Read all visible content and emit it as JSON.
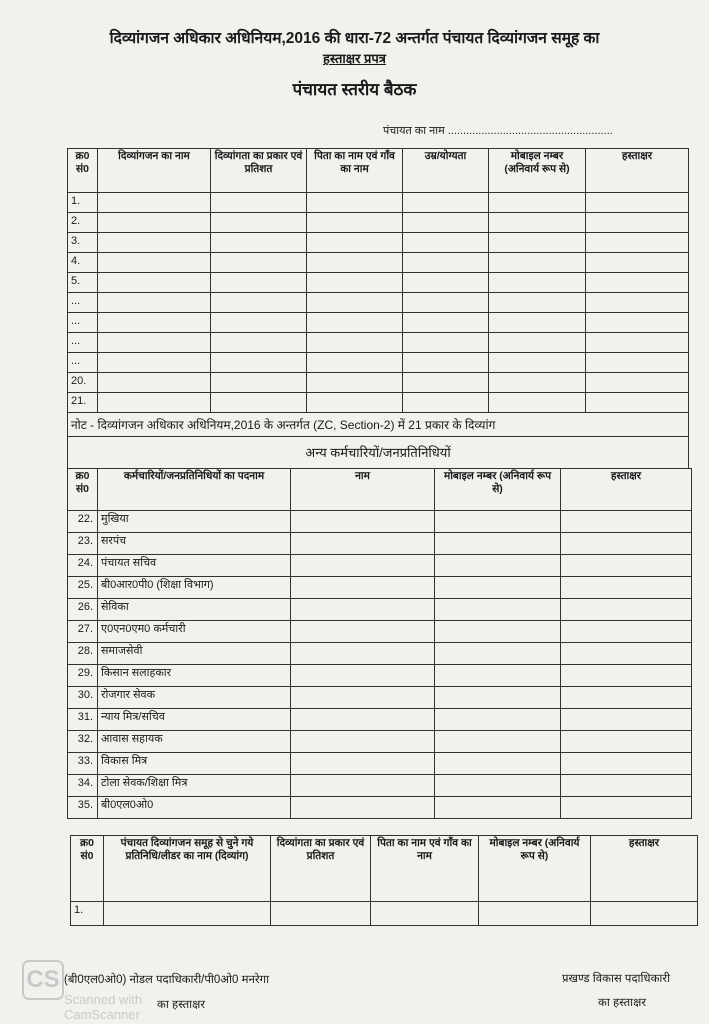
{
  "header": {
    "title": "दिव्यांगजन अधिकार अधिनियम,2016 की धारा-72 अन्तर्गत पंचायत दिव्यांगजन समूह का",
    "subtitle": "हस्ताक्षर प्रपत्र",
    "heading": "पंचायत स्तरीय बैठक",
    "panchayat_name_label": "पंचायत का नाम ......................................................"
  },
  "table1": {
    "columns": [
      "क्र0 सं0",
      "दिव्यांगजन का नाम",
      "दिव्यांगता का प्रकार एवं प्रतिशत",
      "पिता का नाम एवं गाँव का नाम",
      "उम्र/योग्यता",
      "मोबाइल नम्बर (अनिवार्य रूप से)",
      "हस्ताक्षर"
    ],
    "rows": [
      "1.",
      "2.",
      "3.",
      "4.",
      "5.",
      "...",
      "...",
      "...",
      "...",
      "20.",
      "21."
    ],
    "note": "नोट - दिव्यांगजन अधिकार अधिनियम,2016 के अन्तर्गत (ZC, Section-2)  में 21 प्रकार के दिव्यांग"
  },
  "table2": {
    "section_title": "अन्य कर्मचारियों/जनप्रतिनिधियों",
    "columns": [
      "क्र0 सं0",
      "कर्मचारियों/जनप्रतिनिधियों का पदनाम",
      "नाम",
      "मोबाइल नम्बर (अनिवार्य रूप से)",
      "हस्ताक्षर"
    ],
    "rows": [
      {
        "no": "22.",
        "designation": "मुखिया"
      },
      {
        "no": "23.",
        "designation": "सरपंच"
      },
      {
        "no": "24.",
        "designation": "पंचायत सचिव"
      },
      {
        "no": "25.",
        "designation": "बी0आर0पी0 (शिक्षा विभाग)"
      },
      {
        "no": "26.",
        "designation": "सेविका"
      },
      {
        "no": "27.",
        "designation": "ए0एन0एम0 कर्मचारी"
      },
      {
        "no": "28.",
        "designation": "समाजसेवी"
      },
      {
        "no": "29.",
        "designation": "किसान सलाहकार"
      },
      {
        "no": "30.",
        "designation": "रोजगार सेवक"
      },
      {
        "no": "31.",
        "designation": "न्याय मित्र/सचिव"
      },
      {
        "no": "32.",
        "designation": "आवास सहायक"
      },
      {
        "no": "33.",
        "designation": "विकास मित्र"
      },
      {
        "no": "34.",
        "designation": "टोला सेवक/शिक्षा मित्र"
      },
      {
        "no": "35.",
        "designation": "बी0एल0ओ0"
      }
    ]
  },
  "table3": {
    "columns": [
      "क्र0 सं0",
      "पंचायत दिव्यांगजन समूह से चुने गये प्रतिनिधि/लीडर का नाम (दिव्यांग)",
      "दिव्यांगता का प्रकार एवं प्रतिशत",
      "पिता का नाम एवं गाँव का नाम",
      "मोबाइल नम्बर (अनिवार्य रूप से)",
      "हस्ताक्षर"
    ],
    "rows": [
      "1."
    ]
  },
  "footer": {
    "left_line1": "(बी0एल0ओ0) नोडल पदाधिकारी/पी0ओ0 मनरेगा",
    "left_line2": "का हस्ताक्षर",
    "right_line1": "प्रखण्ड विकास पदाधिकारी",
    "right_line2": "का हस्ताक्षर"
  },
  "watermark": {
    "logo": "CS",
    "text": "Scanned with CamScanner"
  }
}
